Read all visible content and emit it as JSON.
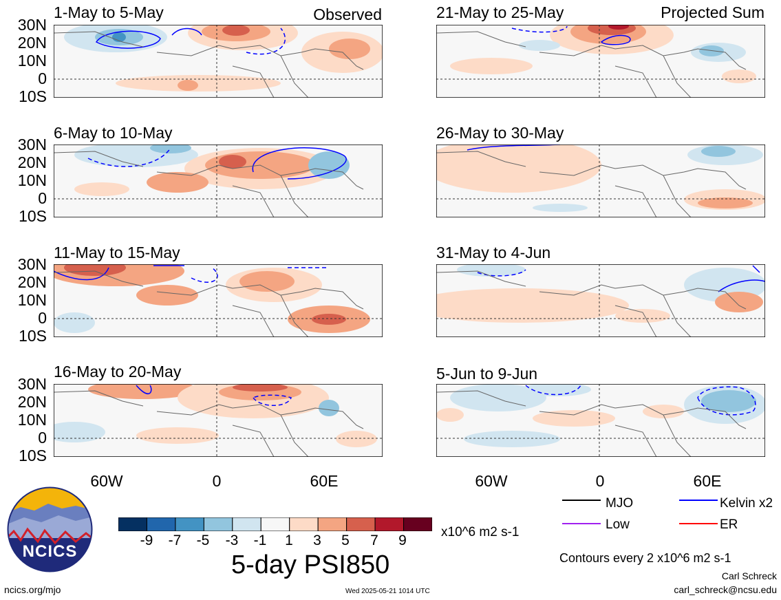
{
  "panels": [
    {
      "title": "1-May to 5-May",
      "corner": "Observed"
    },
    {
      "title": "6-May to 10-May",
      "corner": ""
    },
    {
      "title": "11-May to 15-May",
      "corner": ""
    },
    {
      "title": "16-May to 20-May",
      "corner": ""
    },
    {
      "title": "21-May to 25-May",
      "corner": "Projected Sum"
    },
    {
      "title": "26-May to 30-May",
      "corner": ""
    },
    {
      "title": "31-May to 4-Jun",
      "corner": ""
    },
    {
      "title": "5-Jun to 9-Jun",
      "corner": ""
    }
  ],
  "lat_labels": [
    "30N",
    "20N",
    "10N",
    "0",
    "10S"
  ],
  "lon_labels": [
    "60W",
    "0",
    "60E"
  ],
  "colorbar": {
    "ticks": [
      "-9",
      "-7",
      "-5",
      "-3",
      "-1",
      "1",
      "3",
      "5",
      "7",
      "9"
    ],
    "units": "x10^6 m2 s-1",
    "colors": [
      "#053061",
      "#2166ac",
      "#4393c3",
      "#92c5de",
      "#d1e5f0",
      "#f7f7f7",
      "#fddbc7",
      "#f4a582",
      "#d6604d",
      "#b2182b",
      "#67001f"
    ]
  },
  "main_title": "5-day PSI850",
  "legend": [
    {
      "label": "MJO",
      "color": "#000000"
    },
    {
      "label": "Kelvin x2",
      "color": "#0000ff"
    },
    {
      "label": "Low",
      "color": "#a020f0"
    },
    {
      "label": "ER",
      "color": "#ff0000"
    }
  ],
  "contour_note": "Contours every 2 x10^6 m2 s-1",
  "author": "Carl Schreck",
  "email": "carl_schreck@ncsu.edu",
  "site": "ncics.org/mjo",
  "timestamp": "Wed 2025-05-21 1014 UTC",
  "logo_text": "NCICS"
}
